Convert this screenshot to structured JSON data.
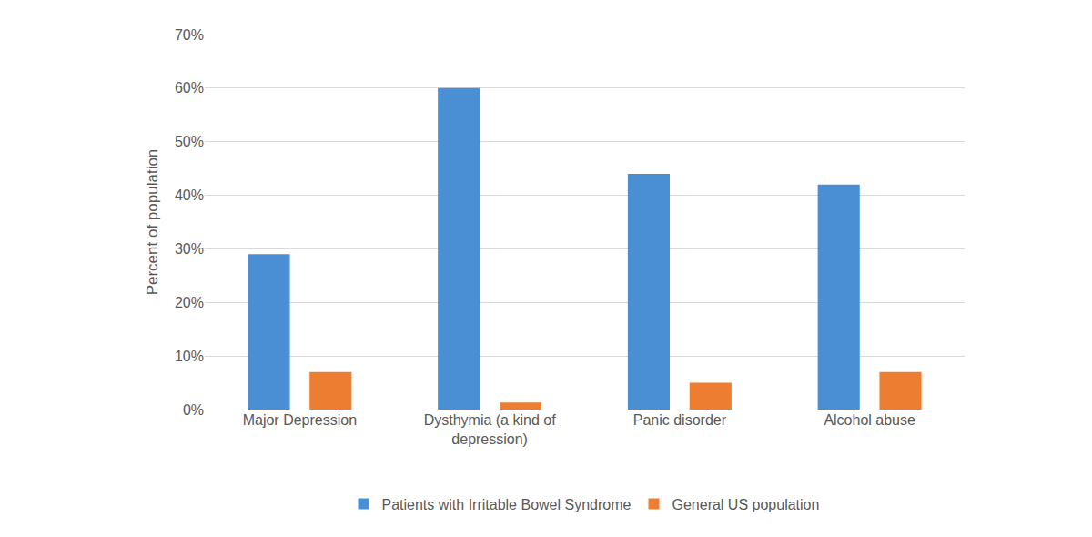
{
  "chart_data": {
    "type": "bar",
    "categories": [
      "Major Depression",
      "Dysthymia (a kind of depression)",
      "Panic disorder",
      "Alcohol abuse"
    ],
    "series": [
      {
        "name": "Patients with Irritable Bowel Syndrome",
        "color": "#4a8fd4",
        "values": [
          29,
          60,
          44,
          42
        ]
      },
      {
        "name": "General US population",
        "color": "#ed7d31",
        "values": [
          7,
          1.3,
          5,
          7
        ]
      }
    ],
    "y_label": "Percent of population",
    "ylim": [
      0,
      70
    ],
    "yticks": [
      {
        "value": 0,
        "label": "0%"
      },
      {
        "value": 10,
        "label": "10%"
      },
      {
        "value": 20,
        "label": "20%"
      },
      {
        "value": 30,
        "label": "30%"
      },
      {
        "value": 40,
        "label": "40%"
      },
      {
        "value": 50,
        "label": "50%"
      },
      {
        "value": 60,
        "label": "60%"
      },
      {
        "value": 70,
        "label": "70%"
      }
    ],
    "grid": true,
    "legend": "bottom"
  }
}
